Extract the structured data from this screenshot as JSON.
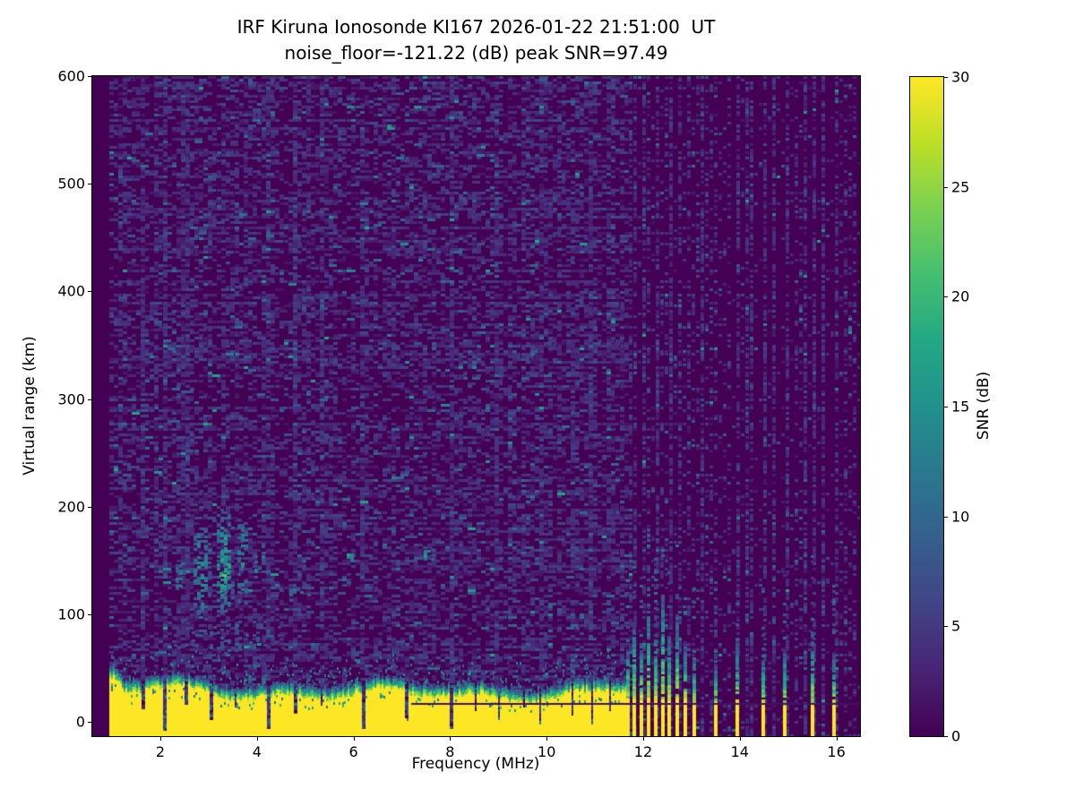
{
  "figure": {
    "title_line1": "IRF Kiruna Ionosonde KI167 2026-01-22 21:51:00  UT",
    "title_line2": "noise_floor=-121.22 (dB) peak SNR=97.49",
    "background_color": "#ffffff"
  },
  "chart_data": {
    "type": "heatmap",
    "title": "IRF Kiruna Ionosonde KI167 2026-01-22 21:51:00  UT",
    "subtitle": "noise_floor=-121.22 (dB) peak SNR=97.49",
    "station": "IRF Kiruna Ionosonde KI167",
    "timestamp_ut": "2026-01-22 21:51:00",
    "noise_floor_db": -121.22,
    "peak_snr_db": 97.49,
    "xlabel": "Frequency (MHz)",
    "ylabel": "Virtual range (km)",
    "xlim": [
      0.59,
      16.49
    ],
    "ylim": [
      -13,
      600
    ],
    "x_ticks": [
      2,
      4,
      6,
      8,
      10,
      12,
      14,
      16
    ],
    "y_ticks": [
      0,
      100,
      200,
      300,
      400,
      500,
      600
    ],
    "grid": false,
    "legend": "none",
    "colorbar": {
      "label": "SNR (dB)",
      "ticks": [
        0,
        5,
        10,
        15,
        20,
        25,
        30
      ],
      "vmin": 0,
      "vmax": 30,
      "position": "right"
    },
    "colormap": {
      "name": "viridis",
      "stops": [
        [
          0.0,
          "#440154"
        ],
        [
          0.1,
          "#482475"
        ],
        [
          0.2,
          "#414487"
        ],
        [
          0.3,
          "#355f8d"
        ],
        [
          0.4,
          "#2a788e"
        ],
        [
          0.5,
          "#21918c"
        ],
        [
          0.6,
          "#22a884"
        ],
        [
          0.7,
          "#44bf70"
        ],
        [
          0.8,
          "#7ad151"
        ],
        [
          0.9,
          "#bddf26"
        ],
        [
          1.0,
          "#fde725"
        ]
      ]
    },
    "seed": 20260122,
    "sweep_start_mhz": 0.95,
    "ground_band": {
      "f_start": 0.95,
      "f_end": 11.63,
      "top_km_mean": 26,
      "fringe_km": 13,
      "snr_db": 30
    },
    "band_notches": [
      {
        "f": 1.62,
        "w": 0.06,
        "down_to_km": 12
      },
      {
        "f": 2.07,
        "w": 0.07,
        "down_to_km": -8
      },
      {
        "f": 2.52,
        "w": 0.04,
        "down_to_km": 16
      },
      {
        "f": 3.03,
        "w": 0.06,
        "down_to_km": 2
      },
      {
        "f": 3.55,
        "w": 0.04,
        "down_to_km": 14
      },
      {
        "f": 4.24,
        "w": 0.07,
        "down_to_km": -6
      },
      {
        "f": 4.78,
        "w": 0.05,
        "down_to_km": 8
      },
      {
        "f": 5.32,
        "w": 0.04,
        "down_to_km": 15
      },
      {
        "f": 6.18,
        "w": 0.07,
        "down_to_km": -6
      },
      {
        "f": 7.08,
        "w": 0.05,
        "down_to_km": 4
      },
      {
        "f": 8.02,
        "w": 0.06,
        "down_to_km": -4
      },
      {
        "f": 8.52,
        "w": 0.04,
        "down_to_km": 10
      },
      {
        "f": 9.0,
        "w": 0.05,
        "down_to_km": 2
      },
      {
        "f": 9.52,
        "w": 0.04,
        "down_to_km": 14
      },
      {
        "f": 9.85,
        "w": 0.06,
        "down_to_km": -2
      },
      {
        "f": 10.52,
        "w": 0.05,
        "down_to_km": 6
      },
      {
        "f": 10.92,
        "w": 0.05,
        "down_to_km": 0
      },
      {
        "f": 11.3,
        "w": 0.04,
        "down_to_km": 10
      }
    ],
    "picket_columns": [
      {
        "f": 11.68,
        "yellow_top_km": 22,
        "teal_top_km": 70
      },
      {
        "f": 11.82,
        "yellow_top_km": 24,
        "teal_top_km": 95
      },
      {
        "f": 11.97,
        "yellow_top_km": 23,
        "teal_top_km": 75
      },
      {
        "f": 12.11,
        "yellow_top_km": 25,
        "teal_top_km": 110
      },
      {
        "f": 12.26,
        "yellow_top_km": 22,
        "teal_top_km": 85
      },
      {
        "f": 12.4,
        "yellow_top_km": 24,
        "teal_top_km": 120
      },
      {
        "f": 12.54,
        "yellow_top_km": 23,
        "teal_top_km": 80
      },
      {
        "f": 12.7,
        "yellow_top_km": 24,
        "teal_top_km": 100
      },
      {
        "f": 12.88,
        "yellow_top_km": 22,
        "teal_top_km": 75
      },
      {
        "f": 13.05,
        "yellow_top_km": 20,
        "teal_top_km": 60
      },
      {
        "f": 13.5,
        "yellow_top_km": 20,
        "teal_top_km": 55
      },
      {
        "f": 13.94,
        "yellow_top_km": 19,
        "teal_top_km": 75
      },
      {
        "f": 14.48,
        "yellow_top_km": 21,
        "teal_top_km": 60
      },
      {
        "f": 14.94,
        "yellow_top_km": 18,
        "teal_top_km": 70
      },
      {
        "f": 15.5,
        "yellow_top_km": 20,
        "teal_top_km": 85
      },
      {
        "f": 15.96,
        "yellow_top_km": 19,
        "teal_top_km": 65
      }
    ],
    "noise_columns": [
      13.2,
      13.33,
      13.7,
      14.1,
      14.22,
      14.68,
      15.18,
      15.32,
      15.7,
      16.12,
      16.3
    ],
    "echo_features": [
      {
        "f": [
          2.25,
          2.5
        ],
        "km": [
          120,
          150
        ],
        "snr": 14,
        "density": 0.55
      },
      {
        "f": [
          2.62,
          3.02
        ],
        "km": [
          92,
          190
        ],
        "snr": 17,
        "density": 0.6
      },
      {
        "f": [
          3.1,
          3.5
        ],
        "km": [
          95,
          205
        ],
        "snr": 20,
        "density": 0.65,
        "core": {
          "f": [
            3.15,
            3.42
          ],
          "km": [
            118,
            148
          ],
          "snr": 27,
          "density": 0.8
        }
      },
      {
        "f": [
          3.52,
          3.8
        ],
        "km": [
          105,
          192
        ],
        "snr": 17,
        "density": 0.5
      },
      {
        "f": [
          3.88,
          4.18
        ],
        "km": [
          125,
          152
        ],
        "snr": 17,
        "density": 0.6,
        "slant": 24
      },
      {
        "f": [
          4.45,
          5.15
        ],
        "km": [
          112,
          130
        ],
        "snr": 13,
        "density": 0.4
      },
      {
        "f": [
          5.78,
          5.97
        ],
        "km": [
          147,
          160
        ],
        "snr": 21,
        "density": 0.8
      },
      {
        "f": [
          7.38,
          7.62
        ],
        "km": [
          150,
          163
        ],
        "snr": 25,
        "density": 0.85
      },
      {
        "f": [
          2.05,
          4.55
        ],
        "km": [
          58,
          100
        ],
        "snr": 10,
        "density": 0.22
      }
    ],
    "horizontal_line": {
      "f_start": 7.2,
      "f_end": 16.49,
      "km": 18
    },
    "noise": {
      "left_density": 0.4,
      "right_base_density": 0.05,
      "right_column_density": 0.6,
      "typical_snr_db": [
        2,
        6
      ],
      "rare_high_snr_db": [
        12,
        18
      ]
    }
  }
}
